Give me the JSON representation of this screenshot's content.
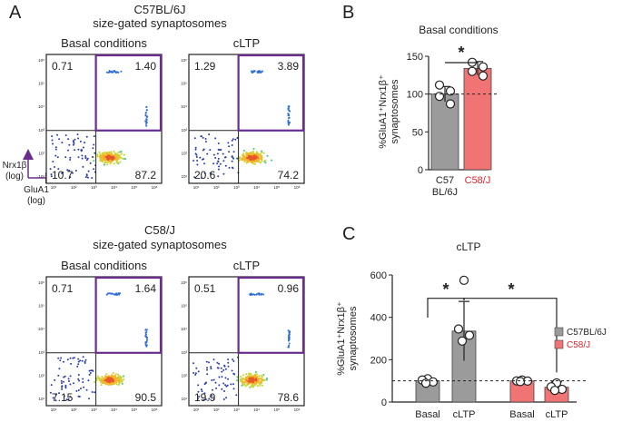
{
  "colors": {
    "gate": "#6b2c8f",
    "c57": "#9b9b9b",
    "c58": "#f07474",
    "c58_text": "#d9262a",
    "sig": "#111111"
  },
  "panel_a": {
    "letter": "A",
    "section1": {
      "title1": "C57BL/6J",
      "title2": "size-gated synaptosomes"
    },
    "section2": {
      "title1": "C58/J",
      "title2": "size-gated synaptosomes"
    },
    "axis": {
      "y_label1": "Nrx1β",
      "y_label2": "(log)",
      "x_label1": "GluA1",
      "x_label2": "(log)"
    },
    "tick_labels": [
      "10¹",
      "10²",
      "10³",
      "10⁴",
      "10⁵",
      "10⁶"
    ],
    "plots": [
      {
        "name": "c57-basal",
        "title": "Basal conditions",
        "q_ul": "0.71",
        "q_ur": "1.40",
        "q_ll": "10.7",
        "q_lr": "87.2"
      },
      {
        "name": "c57-cltp",
        "title": "cLTP",
        "q_ul": "1.29",
        "q_ur": "3.89",
        "q_ll": "20.6",
        "q_lr": "74.2"
      },
      {
        "name": "c58-basal",
        "title": "Basal conditions",
        "q_ul": "0.71",
        "q_ur": "1.64",
        "q_ll": "7.15",
        "q_lr": "90.5"
      },
      {
        "name": "c58-cltp",
        "title": "cLTP",
        "q_ul": "0.51",
        "q_ur": "0.96",
        "q_ll": "19.9",
        "q_lr": "78.6"
      }
    ]
  },
  "chart_data": [
    {
      "panel": "B",
      "type": "bar",
      "title": "Basal conditions",
      "ylabel_line1": "%GluA1⁺Nrx1β⁺",
      "ylabel_line2": "synaptosomes",
      "ylim": [
        0,
        150
      ],
      "yticks": [
        0,
        50,
        100,
        150
      ],
      "reference_line": 100,
      "categories": [
        {
          "line1": "C57",
          "line2": "BL/6J",
          "color": "#9b9b9b",
          "label_color": "#222222"
        },
        {
          "line1": "C58/J",
          "line2": "",
          "color": "#f07474",
          "label_color": "#d9262a"
        }
      ],
      "values": [
        100,
        134
      ],
      "errors": [
        10,
        9
      ],
      "points": [
        [
          112,
          104,
          97,
          87
        ],
        [
          142,
          136,
          130,
          124
        ]
      ],
      "significance": "*"
    },
    {
      "panel": "C",
      "type": "bar",
      "title": "cLTP",
      "ylabel_line1": "%GluA1⁺Nrx1β⁺",
      "ylabel_line2": "synaptosomes",
      "ylim": [
        0,
        600
      ],
      "yticks": [
        0,
        200,
        400,
        600
      ],
      "reference_line": 100,
      "categories": [
        "Basal",
        "cLTP",
        "Basal",
        "cLTP"
      ],
      "bar_groups": [
        "C57BL/6J",
        "C57BL/6J",
        "C58/J",
        "C58/J"
      ],
      "values": [
        100,
        335,
        100,
        70
      ],
      "errors": [
        10,
        140,
        8,
        25
      ],
      "points": [
        [
          110,
          104,
          95,
          89
        ],
        [
          575,
          345,
          315,
          288
        ],
        [
          104,
          100,
          99,
          97
        ],
        [
          90,
          72,
          60,
          55
        ]
      ],
      "significance": [
        "*",
        "*"
      ],
      "legend": [
        {
          "label": "C57BL/6J",
          "color": "#9b9b9b",
          "text_color": "#222222"
        },
        {
          "label": "C58/J",
          "color": "#f07474",
          "text_color": "#d9262a"
        }
      ]
    }
  ]
}
